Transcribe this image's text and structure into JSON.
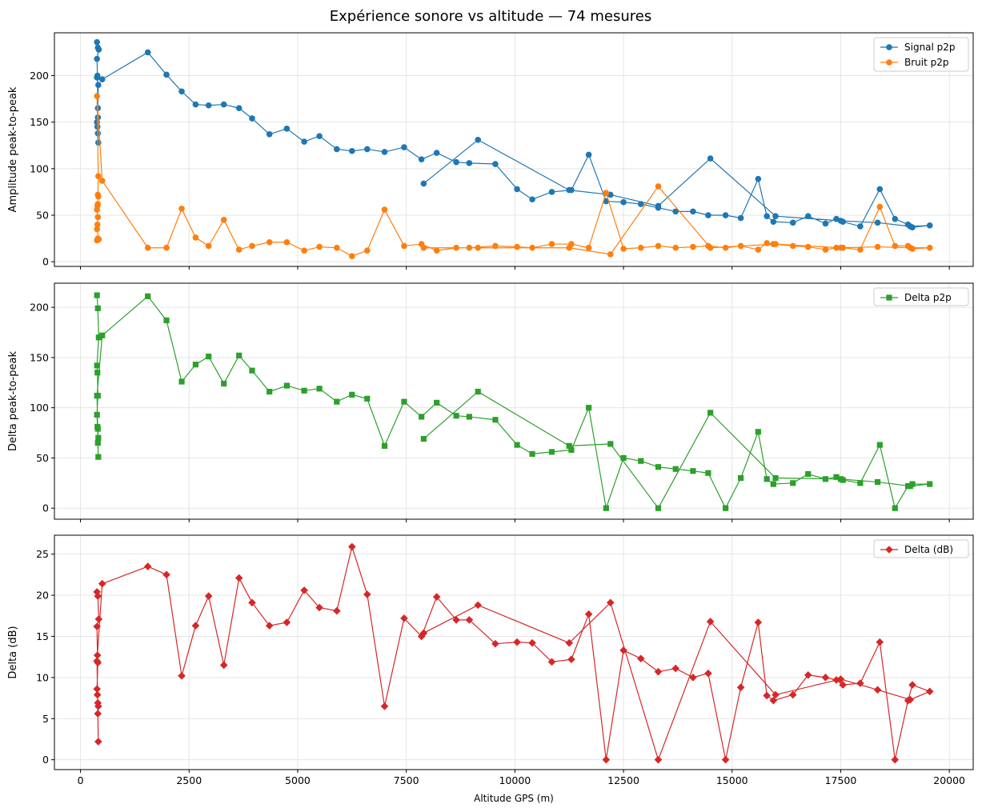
{
  "chart_data": {
    "type": "line",
    "title": "Expérience sonore vs altitude — 74 mesures",
    "xlabel": "Altitude GPS (m)",
    "xlim": [
      -600,
      20550
    ],
    "xticks": [
      0,
      2500,
      5000,
      7500,
      10000,
      12500,
      15000,
      17500,
      20000
    ],
    "x": [
      380,
      400,
      420,
      380,
      390,
      400,
      380,
      390,
      400,
      410,
      400,
      410,
      380,
      500,
      1550,
      1980,
      2330,
      2650,
      2950,
      3300,
      3650,
      3950,
      4350,
      4750,
      5150,
      5500,
      5900,
      6250,
      6600,
      7000,
      7450,
      7850,
      8200,
      8650,
      8950,
      9550,
      10050,
      10400,
      10850,
      11300,
      11700,
      12100,
      12500,
      12900,
      13300,
      13700,
      14100,
      14450,
      14850,
      15200,
      15600,
      15800,
      15950,
      16400,
      16750,
      17150,
      17400,
      17550,
      17950,
      18400,
      18750,
      19050,
      19150,
      19550,
      19100,
      18350,
      17500,
      16000,
      14500,
      13300,
      12200,
      11250,
      9150,
      7900
    ],
    "panels": [
      {
        "ylabel": "Amplitude peak-to-peak",
        "ylim": [
          -5,
          246
        ],
        "yticks": [
          0,
          50,
          100,
          150,
          200
        ],
        "legend": "top-right",
        "series": [
          {
            "name": "Signal p2p",
            "color": "#1f77b4",
            "marker": "circle",
            "values": [
              236,
              230,
              228,
              218,
              200,
              155,
              150,
              145,
              138,
              128,
              165,
              190,
              198,
              196,
              225,
              201,
              183,
              169,
              168,
              169,
              165,
              154,
              137,
              143,
              129,
              135,
              121,
              119,
              121,
              118,
              123,
              110,
              117,
              107,
              106,
              105,
              78,
              67,
              75,
              77,
              115,
              65,
              64,
              62,
              58,
              54,
              54,
              50,
              50,
              47,
              89,
              49,
              43,
              42,
              49,
              41,
              46,
              43,
              38,
              78,
              46,
              40,
              37,
              39,
              38,
              42,
              44,
              49,
              111,
              60,
              72,
              77,
              131,
              84
            ]
          },
          {
            "name": "Bruit p2p",
            "color": "#ff7f0e",
            "marker": "circle",
            "values": [
              23,
              25,
              24,
              35,
              40,
              48,
              56,
              60,
              62,
              70,
              72,
              92,
              178,
              87,
              15,
              15,
              57,
              26,
              17,
              45,
              13,
              17,
              21,
              21,
              12,
              16,
              15,
              6,
              12,
              56,
              17,
              19,
              12,
              15,
              15,
              17,
              16,
              15,
              19,
              19,
              15,
              74,
              14,
              15,
              17,
              15,
              16,
              17,
              15,
              17,
              13,
              20,
              19,
              17,
              16,
              13,
              15,
              15,
              13,
              59,
              17,
              17,
              14,
              15,
              15,
              16,
              15,
              19,
              15,
              81,
              8,
              15,
              15,
              15
            ]
          }
        ]
      },
      {
        "ylabel": "Delta peak-to-peak",
        "ylim": [
          -11,
          224
        ],
        "yticks": [
          0,
          50,
          100,
          150,
          200
        ],
        "legend": "top-right",
        "series": [
          {
            "name": "Delta p2p",
            "color": "#2ca02c",
            "marker": "square",
            "values": [
              212,
              199,
              170,
              142,
              135,
              112,
              93,
              81,
              79,
              70,
              65,
              51,
              112,
              172,
              211,
              187,
              126,
              143,
              151,
              124,
              152,
              137,
              116,
              122,
              117,
              119,
              106,
              113,
              109,
              62,
              106,
              91,
              105,
              92,
              91,
              88,
              63,
              54,
              56,
              58,
              100,
              0,
              50,
              47,
              41,
              39,
              37,
              35,
              0,
              30,
              76,
              29,
              24,
              25,
              34,
              29,
              31,
              28,
              25,
              63,
              0,
              22,
              24,
              24,
              22,
              26,
              29,
              30,
              95,
              0,
              64,
              62,
              116,
              69
            ]
          }
        ]
      },
      {
        "ylabel": "Delta (dB)",
        "ylim": [
          -1.2,
          27.3
        ],
        "yticks": [
          0,
          5,
          10,
          15,
          20,
          25
        ],
        "legend": "top-right",
        "series": [
          {
            "name": "Delta (dB)",
            "color": "#d62728",
            "marker": "diamond",
            "values": [
              20.4,
              19.9,
              17.1,
              16.2,
              12.7,
              11.8,
              8.6,
              7.9,
              6.9,
              6.5,
              5.6,
              2.2,
              12.0,
              21.4,
              23.5,
              22.5,
              10.2,
              16.3,
              19.9,
              11.5,
              22.1,
              19.1,
              16.3,
              16.7,
              20.6,
              18.5,
              18.1,
              25.9,
              20.1,
              6.5,
              17.2,
              15.0,
              19.8,
              17.0,
              17.0,
              14.1,
              14.3,
              14.2,
              11.9,
              12.2,
              17.7,
              0,
              13.3,
              12.3,
              10.7,
              11.1,
              10.0,
              10.5,
              0,
              8.8,
              16.7,
              7.8,
              7.2,
              7.9,
              10.3,
              10.0,
              9.7,
              9.1,
              9.3,
              14.3,
              0,
              7.2,
              9.1,
              8.3,
              7.3,
              8.5,
              9.8,
              7.9,
              16.8,
              0,
              19.1,
              14.2,
              18.8,
              15.4
            ]
          }
        ]
      }
    ]
  }
}
